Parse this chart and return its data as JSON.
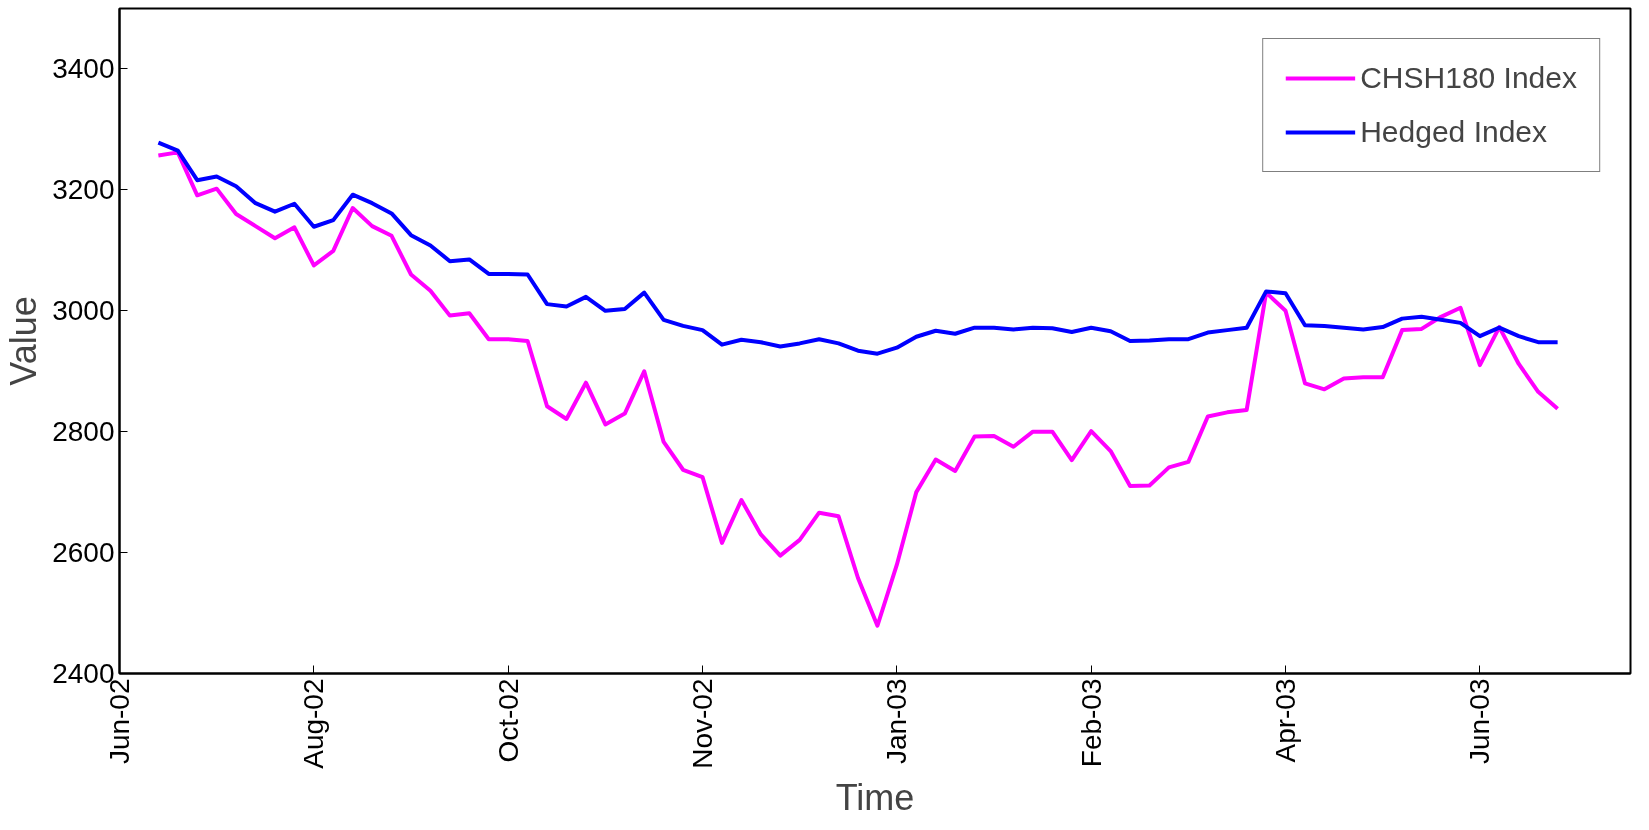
{
  "chart_data": {
    "type": "line",
    "xlabel": "Time",
    "ylabel": "Value",
    "categories": [
      "Jun-02",
      null,
      null,
      null,
      null,
      null,
      null,
      null,
      null,
      null,
      "Aug-02",
      null,
      null,
      null,
      null,
      null,
      null,
      null,
      null,
      null,
      "Oct-02",
      null,
      null,
      null,
      null,
      null,
      null,
      null,
      null,
      null,
      "Nov-02",
      null,
      null,
      null,
      null,
      null,
      null,
      null,
      null,
      null,
      "Jan-03",
      null,
      null,
      null,
      null,
      null,
      null,
      null,
      null,
      null,
      "Feb-03",
      null,
      null,
      null,
      null,
      null,
      null,
      null,
      null,
      null,
      "Apr-03",
      null,
      null,
      null,
      null,
      null,
      null,
      null,
      null,
      null,
      "Jun-03",
      null,
      null,
      null,
      null,
      null,
      null,
      null
    ],
    "ylim": [
      2400,
      3500
    ],
    "yticks": [
      2400,
      2600,
      2800,
      3000,
      3200,
      3400
    ],
    "grid": false,
    "legend": "top right",
    "marker": "none",
    "line_style": "solid",
    "series": [
      {
        "name": "CHSH180 Index",
        "color": "#ff00ff",
        "values": [
          null,
          null,
          3257,
          3262,
          3191,
          3202,
          3160,
          3140,
          3120,
          3138,
          3075,
          3099,
          3170,
          3140,
          3124,
          3060,
          3033,
          2992,
          2996,
          2953,
          2953,
          2950,
          2842,
          2821,
          2881,
          2812,
          2830,
          2900,
          2783,
          2737,
          2725,
          2616,
          2687,
          2630,
          2595,
          2621,
          2666,
          2660,
          2558,
          2479,
          2580,
          2700,
          2754,
          2735,
          2792,
          2793,
          2775,
          2800,
          2800,
          2753,
          2801,
          2768,
          2710,
          2711,
          2741,
          2750,
          2825,
          2832,
          2836,
          3030,
          3000,
          2880,
          2870,
          2888,
          2890,
          2890,
          2968,
          2970,
          2990,
          3005,
          2910,
          2973,
          2912,
          2866,
          2838,
          null,
          null,
          null
        ]
      },
      {
        "name": "Hedged Index",
        "color": "#0000ff",
        "values": [
          null,
          null,
          3278,
          3265,
          3216,
          3222,
          3206,
          3178,
          3164,
          3177,
          3139,
          3150,
          3192,
          3178,
          3161,
          3125,
          3108,
          3082,
          3085,
          3061,
          3061,
          3060,
          3011,
          3007,
          3023,
          3000,
          3003,
          3030,
          2985,
          2975,
          2968,
          2944,
          2952,
          2948,
          2941,
          2946,
          2953,
          2946,
          2934,
          2929,
          2939,
          2957,
          2967,
          2962,
          2972,
          2972,
          2969,
          2972,
          2971,
          2965,
          2972,
          2966,
          2950,
          2951,
          2953,
          2953,
          2964,
          2968,
          2972,
          3032,
          3029,
          2976,
          2975,
          2972,
          2969,
          2973,
          2987,
          2990,
          2985,
          2980,
          2958,
          2972,
          2958,
          2948,
          2948,
          null,
          null,
          null
        ]
      }
    ]
  }
}
